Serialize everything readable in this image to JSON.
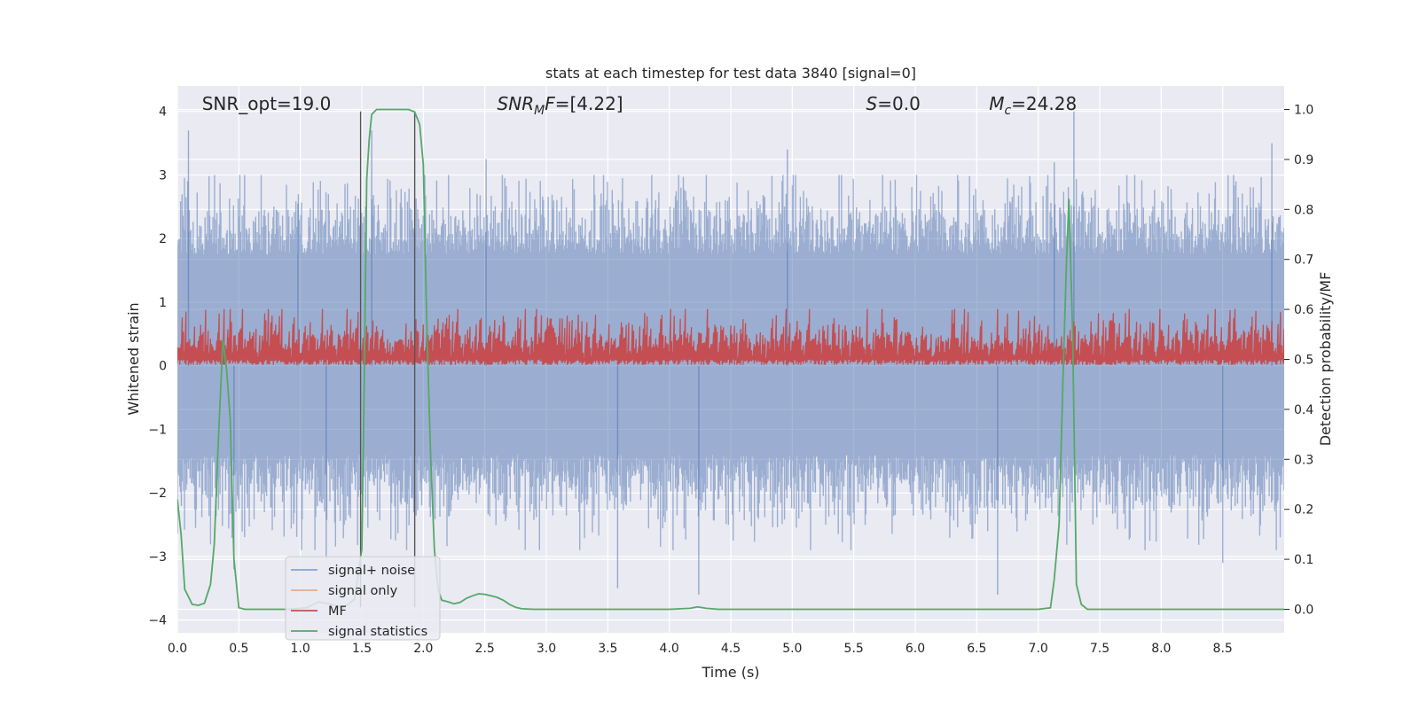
{
  "chart_data": {
    "type": "line",
    "title": "stats at each timestep for test data 3840 [signal=0]",
    "xlabel": "Time (s)",
    "ylabel_left": "Whitened strain",
    "ylabel_right": "Detection probability/MF",
    "xlim": [
      0,
      9
    ],
    "ylim_left": [
      -4.2,
      4.4
    ],
    "ylim_right": [
      -0.047,
      1.047
    ],
    "x_ticks": [
      "0.0",
      "0.5",
      "1.0",
      "1.5",
      "2.0",
      "2.5",
      "3.0",
      "3.5",
      "4.0",
      "4.5",
      "5.0",
      "5.5",
      "6.0",
      "6.5",
      "7.0",
      "7.5",
      "8.0",
      "8.5"
    ],
    "y_ticks_left": [
      "4",
      "3",
      "2",
      "1",
      "0",
      "−1",
      "−2",
      "−3",
      "−4"
    ],
    "y_ticks_right": [
      "1.0",
      "0.9",
      "0.8",
      "0.7",
      "0.6",
      "0.5",
      "0.4",
      "0.3",
      "0.2",
      "0.1",
      "0.0"
    ],
    "grid": true,
    "annotations": [
      {
        "label": "SNR_opt=19.0",
        "x_data": 0.2
      },
      {
        "label": "SNR_MF=[4.22]",
        "base": "SNR",
        "sub": "M",
        "tail": "F=[4.22]",
        "x_data": 2.6
      },
      {
        "label": "S=0.0",
        "base": "S",
        "tail": "=0.0",
        "x_data": 5.6
      },
      {
        "label": "M_c=24.28",
        "base": "M",
        "sub": "c",
        "tail": "=24.28",
        "x_data": 6.6
      }
    ],
    "vertical_lines": [
      1.49,
      1.93
    ],
    "legend": {
      "location": "lower-left",
      "entries": [
        {
          "label": "signal+ noise",
          "color": "#4c72b0"
        },
        {
          "label": "signal only",
          "color": "#dd8452"
        },
        {
          "label": "MF",
          "color": "#c44e52"
        },
        {
          "label": "signal statistics",
          "color": "#55a868"
        }
      ]
    },
    "series": [
      {
        "name": "signal+ noise",
        "axis": "left",
        "style": "dense noise band",
        "color": "#4c72b0",
        "typical_range": [
          -1.4,
          1.75
        ],
        "notable_peaks": [
          {
            "x": 0.09,
            "y": 3.7
          },
          {
            "x": 0.98,
            "y": 2.55
          },
          {
            "x": 1.58,
            "y": 3.7
          },
          {
            "x": 2.51,
            "y": 3.25
          },
          {
            "x": 4.96,
            "y": 3.4
          },
          {
            "x": 7.13,
            "y": 3.2
          },
          {
            "x": 7.29,
            "y": 4.0
          },
          {
            "x": 8.9,
            "y": 3.5
          }
        ],
        "notable_troughs": [
          {
            "x": 0.46,
            "y": -3.2
          },
          {
            "x": 1.21,
            "y": -3.05
          },
          {
            "x": 3.58,
            "y": -3.5
          },
          {
            "x": 4.24,
            "y": -3.6
          },
          {
            "x": 6.67,
            "y": -3.6
          },
          {
            "x": 8.5,
            "y": -3.1
          }
        ]
      },
      {
        "name": "MF",
        "axis": "right",
        "style": "dense noise band",
        "color": "#c44e52",
        "typical_range": [
          0.5,
          0.59
        ],
        "peak": 0.6
      },
      {
        "name": "signal statistics",
        "axis": "right",
        "color": "#55a868",
        "x": [
          0.0,
          0.03,
          0.06,
          0.1,
          0.12,
          0.17,
          0.22,
          0.27,
          0.3,
          0.33,
          0.37,
          0.4,
          0.43,
          0.46,
          0.5,
          0.55,
          0.7,
          0.9,
          1.05,
          1.15,
          1.25,
          1.35,
          1.44,
          1.5,
          1.52,
          1.54,
          1.56,
          1.58,
          1.62,
          1.7,
          1.8,
          1.88,
          1.93,
          1.97,
          2.0,
          2.03,
          2.06,
          2.09,
          2.12,
          2.15,
          2.2,
          2.25,
          2.3,
          2.35,
          2.4,
          2.45,
          2.5,
          2.55,
          2.6,
          2.65,
          2.7,
          2.75,
          2.8,
          2.9,
          3.5,
          4.0,
          4.17,
          4.23,
          4.3,
          4.4,
          5.0,
          6.0,
          7.0,
          7.1,
          7.13,
          7.17,
          7.2,
          7.23,
          7.25,
          7.28,
          7.31,
          7.35,
          7.4,
          8.0,
          9.0
        ],
        "y": [
          0.22,
          0.15,
          0.04,
          0.02,
          0.01,
          0.008,
          0.012,
          0.05,
          0.13,
          0.32,
          0.54,
          0.48,
          0.38,
          0.1,
          0.003,
          0.0,
          0.0,
          0.0,
          0.003,
          0.015,
          0.01,
          0.003,
          0.02,
          0.12,
          0.47,
          0.86,
          0.94,
          0.99,
          1.0,
          1.0,
          1.0,
          1.0,
          0.995,
          0.97,
          0.89,
          0.55,
          0.3,
          0.12,
          0.04,
          0.018,
          0.015,
          0.011,
          0.014,
          0.022,
          0.027,
          0.031,
          0.03,
          0.027,
          0.024,
          0.018,
          0.01,
          0.004,
          0.001,
          0.0,
          0.0,
          0.0,
          0.002,
          0.005,
          0.002,
          0.0,
          0.0,
          0.0,
          0.0,
          0.003,
          0.06,
          0.17,
          0.45,
          0.7,
          0.82,
          0.55,
          0.05,
          0.01,
          0.0,
          0.0,
          0.0
        ]
      }
    ]
  }
}
